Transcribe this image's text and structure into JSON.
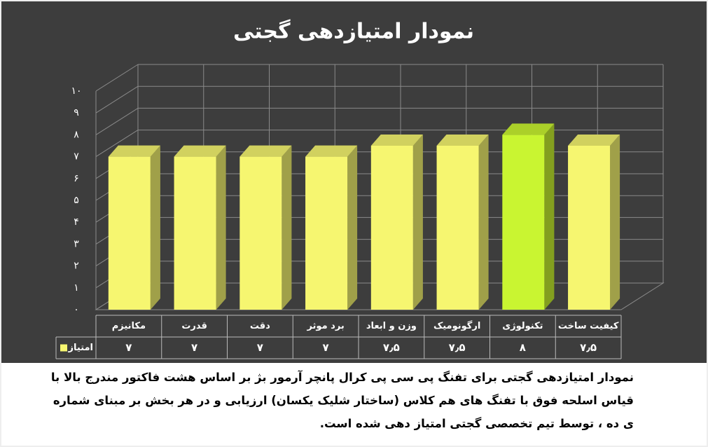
{
  "chart_data": {
    "type": "bar3d",
    "title": "نمودار امتیازدهی گجتی",
    "categories": [
      "مکانیزم",
      "قدرت",
      "دقت",
      "برد موثر",
      "وزن و ابعاد",
      "ارگونومیک",
      "تکنولوژی",
      "کیفیت ساخت"
    ],
    "series": [
      {
        "name": "امتیاز",
        "color": "#f6f670",
        "colors": [
          "#f6f670",
          "#f6f670",
          "#f6f670",
          "#f6f670",
          "#f6f670",
          "#f6f670",
          "#c9f531",
          "#f6f670"
        ],
        "values": [
          7,
          7,
          7,
          7,
          7.5,
          7.5,
          8,
          7.5
        ],
        "value_labels": [
          "۷",
          "۷",
          "۷",
          "۷",
          "۷٫۵",
          "۷٫۵",
          "۸",
          "۷٫۵"
        ]
      }
    ],
    "ylim": [
      0,
      10
    ],
    "yticks": [
      {
        "value": 0,
        "label": "۰"
      },
      {
        "value": 1,
        "label": "۱"
      },
      {
        "value": 2,
        "label": "۲"
      },
      {
        "value": 3,
        "label": "۳"
      },
      {
        "value": 4,
        "label": "۴"
      },
      {
        "value": 5,
        "label": "۵"
      },
      {
        "value": 6,
        "label": "۶"
      },
      {
        "value": 7,
        "label": "۷"
      },
      {
        "value": 8,
        "label": "۸"
      },
      {
        "value": 9,
        "label": "۹"
      },
      {
        "value": 10,
        "label": "۱۰"
      }
    ],
    "grid": true,
    "caption": "نمودار امتیازدهی گجتی برای تفنگ پی سی پی کرال پانچر آرمور بژ بر اساس هشت فاکتور مندرج بالا با قیاس اسلحه فوق با تفنگ های هم کلاس (ساختار شلیک یکسان) ارزیابی و در هر بخش بر مبنای شماره ی ده ، توسط تیم تخصصی گجتی امتیاز دهی شده است."
  }
}
